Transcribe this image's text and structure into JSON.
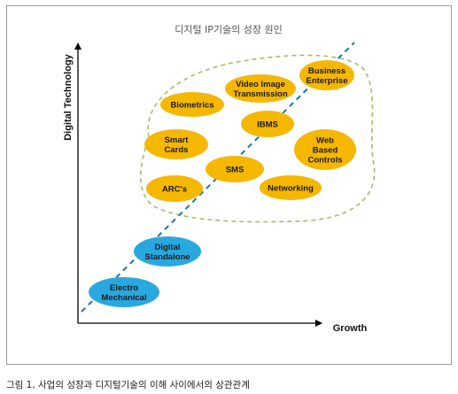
{
  "diagram": {
    "title": "디지털 IP기술의 성장 원인",
    "y_axis_label": "Digital Technology",
    "x_axis_label": "Growth",
    "colors": {
      "yellow_node": "#f5b700",
      "blue_node": "#29a8e0",
      "trend_line": "#1d74b0",
      "cluster_outline": "#a7bb6e",
      "axis": "#000000"
    },
    "nodes": [
      {
        "id": "electro-mechanical",
        "lines": [
          "Electro",
          "Mechanical"
        ],
        "color": "blue"
      },
      {
        "id": "digital-standalone",
        "lines": [
          "Digital",
          "Standalone"
        ],
        "color": "blue"
      },
      {
        "id": "arcs",
        "lines": [
          "ARC's"
        ],
        "color": "yellow"
      },
      {
        "id": "sms",
        "lines": [
          "SMS"
        ],
        "color": "yellow"
      },
      {
        "id": "smart-cards",
        "lines": [
          "Smart",
          "Cards"
        ],
        "color": "yellow"
      },
      {
        "id": "networking",
        "lines": [
          "Networking"
        ],
        "color": "yellow"
      },
      {
        "id": "web-based-controls",
        "lines": [
          "Web",
          "Based",
          "Controls"
        ],
        "color": "yellow"
      },
      {
        "id": "ibms",
        "lines": [
          "IBMS"
        ],
        "color": "yellow"
      },
      {
        "id": "biometrics",
        "lines": [
          "Biometrics"
        ],
        "color": "yellow"
      },
      {
        "id": "video-image-transmission",
        "lines": [
          "Video Image",
          "Transmission"
        ],
        "color": "yellow"
      },
      {
        "id": "business-enterprise",
        "lines": [
          "Business",
          "Enterprise"
        ],
        "color": "yellow"
      }
    ]
  },
  "caption": "그림 1, 사업의 성장과 디지털기술의 이해 사이에서의 상관관계"
}
